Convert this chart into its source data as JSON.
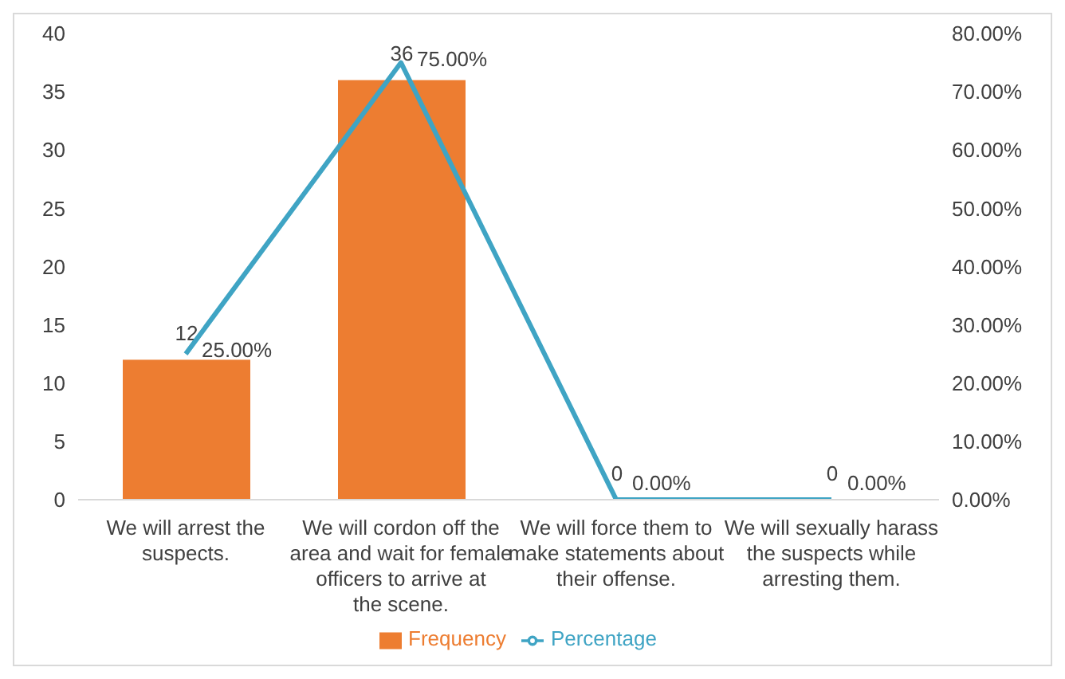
{
  "chart_data": {
    "type": "bar",
    "categories": [
      "We will arrest the suspects.",
      "We will cordon off the area and wait for female officers to arrive at the scene.",
      "We will force them to make statements about their offense.",
      "We will sexually harass the suspects while arresting them."
    ],
    "series": [
      {
        "name": "Frequency",
        "type": "bar",
        "color": "#ed7d31",
        "values": [
          12,
          36,
          0,
          0
        ],
        "value_labels": [
          "12",
          "36",
          "0",
          "0"
        ]
      },
      {
        "name": "Percentage",
        "type": "line",
        "axis": "y2",
        "color": "#3fa4c4",
        "values": [
          25,
          75,
          0,
          0
        ],
        "value_labels": [
          "25.00%",
          "75.00%",
          "0.00%",
          "0.00%"
        ]
      }
    ],
    "ylim": [
      0,
      40
    ],
    "yticks": [
      0,
      5,
      10,
      15,
      20,
      25,
      30,
      35,
      40
    ],
    "y2lim": [
      0,
      80
    ],
    "y2ticks": [
      {
        "value": 0,
        "label": "0.00%"
      },
      {
        "value": 10,
        "label": "10.00%"
      },
      {
        "value": 20,
        "label": "20.00%"
      },
      {
        "value": 30,
        "label": "30.00%"
      },
      {
        "value": 40,
        "label": "40.00%"
      },
      {
        "value": 50,
        "label": "50.00%"
      },
      {
        "value": 60,
        "label": "60.00%"
      },
      {
        "value": 70,
        "label": "70.00%"
      },
      {
        "value": 80,
        "label": "80.00%"
      }
    ],
    "grid": false,
    "legend": "bottom"
  }
}
